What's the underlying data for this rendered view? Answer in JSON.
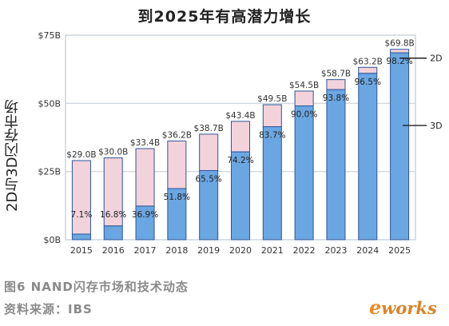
{
  "chart_data": {
    "type": "bar",
    "title": "到2025年有高潜力增长",
    "ylabel": "2D与3D闪存市场",
    "ylim": [
      0,
      75
    ],
    "yticks": [
      "$0B",
      "$25B",
      "$50B",
      "$75B"
    ],
    "categories": [
      "2015",
      "2016",
      "2017",
      "2018",
      "2019",
      "2020",
      "2021",
      "2022",
      "2023",
      "2024",
      "2025"
    ],
    "totals": [
      29.0,
      30.0,
      33.4,
      36.2,
      38.7,
      43.4,
      49.5,
      54.5,
      58.7,
      63.2,
      69.8
    ],
    "total_labels": [
      "$29.0B",
      "$30.0B",
      "$33.4B",
      "$36.2B",
      "$38.7B",
      "$43.4B",
      "$49.5B",
      "$54.5B",
      "$58.7B",
      "$63.2B",
      "$69.8B"
    ],
    "share_3d_pct": [
      7.1,
      16.8,
      36.9,
      51.8,
      65.5,
      74.2,
      83.7,
      90.0,
      93.8,
      96.5,
      98.2
    ],
    "share_labels": [
      "7.1%",
      "16.8%",
      "36.9%",
      "51.8%",
      "65.5%",
      "74.2%",
      "83.7%",
      "90.0%",
      "93.8%",
      "96.5%",
      "98.2%"
    ],
    "series": [
      {
        "name": "3D",
        "color": "#6aa6e2"
      },
      {
        "name": "2D",
        "color": "#f2d3dc"
      }
    ],
    "grid": true,
    "legend": "right"
  },
  "caption": "图6   NAND闪存市场和技术动态",
  "source": "资料来源：IBS",
  "logo": {
    "e": "e",
    "rest": "works"
  },
  "colors": {
    "bar_3d": "#6aa6e2",
    "bar_2d": "#f2d3dc",
    "bar_edge": "#2f5597",
    "grid": "#c9cfd9"
  }
}
